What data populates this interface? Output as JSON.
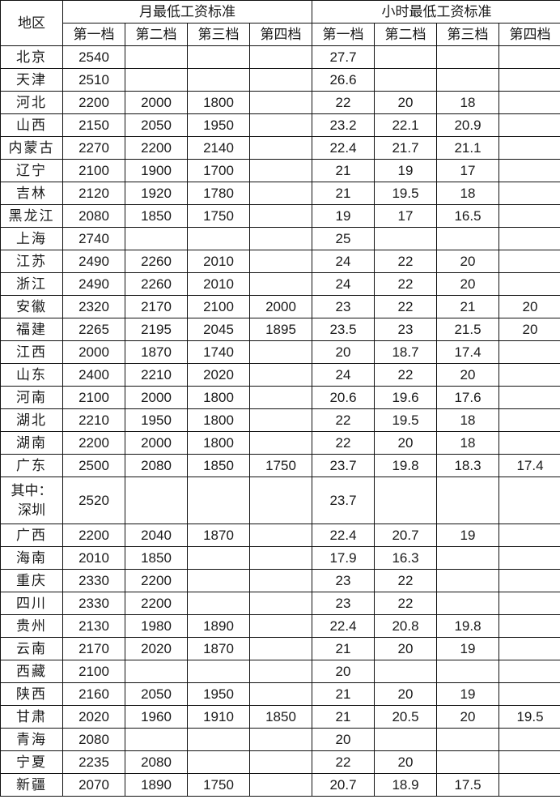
{
  "header": {
    "region": "地区",
    "monthly": "月最低工资标准",
    "hourly": "小时最低工资标准",
    "tiers": [
      "第一档",
      "第二档",
      "第三档",
      "第四档"
    ]
  },
  "rows": [
    {
      "region": "北京",
      "monthly": [
        "2540",
        "",
        "",
        ""
      ],
      "hourly": [
        "27.7",
        "",
        "",
        ""
      ]
    },
    {
      "region": "天津",
      "monthly": [
        "2510",
        "",
        "",
        ""
      ],
      "hourly": [
        "26.6",
        "",
        "",
        ""
      ]
    },
    {
      "region": "河北",
      "monthly": [
        "2200",
        "2000",
        "1800",
        ""
      ],
      "hourly": [
        "22",
        "20",
        "18",
        ""
      ]
    },
    {
      "region": "山西",
      "monthly": [
        "2150",
        "2050",
        "1950",
        ""
      ],
      "hourly": [
        "23.2",
        "22.1",
        "20.9",
        ""
      ]
    },
    {
      "region": "内蒙古",
      "monthly": [
        "2270",
        "2200",
        "2140",
        ""
      ],
      "hourly": [
        "22.4",
        "21.7",
        "21.1",
        ""
      ]
    },
    {
      "region": "辽宁",
      "monthly": [
        "2100",
        "1900",
        "1700",
        ""
      ],
      "hourly": [
        "21",
        "19",
        "17",
        ""
      ]
    },
    {
      "region": "吉林",
      "monthly": [
        "2120",
        "1920",
        "1780",
        ""
      ],
      "hourly": [
        "21",
        "19.5",
        "18",
        ""
      ]
    },
    {
      "region": "黑龙江",
      "monthly": [
        "2080",
        "1850",
        "1750",
        ""
      ],
      "hourly": [
        "19",
        "17",
        "16.5",
        ""
      ]
    },
    {
      "region": "上海",
      "monthly": [
        "2740",
        "",
        "",
        ""
      ],
      "hourly": [
        "25",
        "",
        "",
        ""
      ]
    },
    {
      "region": "江苏",
      "monthly": [
        "2490",
        "2260",
        "2010",
        ""
      ],
      "hourly": [
        "24",
        "22",
        "20",
        ""
      ]
    },
    {
      "region": "浙江",
      "monthly": [
        "2490",
        "2260",
        "2010",
        ""
      ],
      "hourly": [
        "24",
        "22",
        "20",
        ""
      ]
    },
    {
      "region": "安徽",
      "monthly": [
        "2320",
        "2170",
        "2100",
        "2000"
      ],
      "hourly": [
        "23",
        "22",
        "21",
        "20"
      ]
    },
    {
      "region": "福建",
      "monthly": [
        "2265",
        "2195",
        "2045",
        "1895"
      ],
      "hourly": [
        "23.5",
        "23",
        "21.5",
        "20"
      ]
    },
    {
      "region": "江西",
      "monthly": [
        "2000",
        "1870",
        "1740",
        ""
      ],
      "hourly": [
        "20",
        "18.7",
        "17.4",
        ""
      ]
    },
    {
      "region": "山东",
      "monthly": [
        "2400",
        "2210",
        "2020",
        ""
      ],
      "hourly": [
        "24",
        "22",
        "20",
        ""
      ]
    },
    {
      "region": "河南",
      "monthly": [
        "2100",
        "2000",
        "1800",
        ""
      ],
      "hourly": [
        "20.6",
        "19.6",
        "17.6",
        ""
      ]
    },
    {
      "region": "湖北",
      "monthly": [
        "2210",
        "1950",
        "1800",
        ""
      ],
      "hourly": [
        "22",
        "19.5",
        "18",
        ""
      ]
    },
    {
      "region": "湖南",
      "monthly": [
        "2200",
        "2000",
        "1800",
        ""
      ],
      "hourly": [
        "22",
        "20",
        "18",
        ""
      ]
    },
    {
      "region": "广东",
      "monthly": [
        "2500",
        "2080",
        "1850",
        "1750"
      ],
      "hourly": [
        "23.7",
        "19.8",
        "18.3",
        "17.4"
      ]
    },
    {
      "region": "其中：深圳",
      "monthly": [
        "2520",
        "",
        "",
        ""
      ],
      "hourly": [
        "23.7",
        "",
        "",
        ""
      ]
    },
    {
      "region": "广西",
      "monthly": [
        "2200",
        "2040",
        "1870",
        ""
      ],
      "hourly": [
        "22.4",
        "20.7",
        "19",
        ""
      ]
    },
    {
      "region": "海南",
      "monthly": [
        "2010",
        "1850",
        "",
        ""
      ],
      "hourly": [
        "17.9",
        "16.3",
        "",
        ""
      ]
    },
    {
      "region": "重庆",
      "monthly": [
        "2330",
        "2200",
        "",
        ""
      ],
      "hourly": [
        "23",
        "22",
        "",
        ""
      ]
    },
    {
      "region": "四川",
      "monthly": [
        "2330",
        "2200",
        "",
        ""
      ],
      "hourly": [
        "23",
        "22",
        "",
        ""
      ]
    },
    {
      "region": "贵州",
      "monthly": [
        "2130",
        "1980",
        "1890",
        ""
      ],
      "hourly": [
        "22.4",
        "20.8",
        "19.8",
        ""
      ]
    },
    {
      "region": "云南",
      "monthly": [
        "2170",
        "2020",
        "1870",
        ""
      ],
      "hourly": [
        "21",
        "20",
        "19",
        ""
      ]
    },
    {
      "region": "西藏",
      "monthly": [
        "2100",
        "",
        "",
        ""
      ],
      "hourly": [
        "20",
        "",
        "",
        ""
      ]
    },
    {
      "region": "陕西",
      "monthly": [
        "2160",
        "2050",
        "1950",
        ""
      ],
      "hourly": [
        "21",
        "20",
        "19",
        ""
      ]
    },
    {
      "region": "甘肃",
      "monthly": [
        "2020",
        "1960",
        "1910",
        "1850"
      ],
      "hourly": [
        "21",
        "20.5",
        "20",
        "19.5"
      ]
    },
    {
      "region": "青海",
      "monthly": [
        "2080",
        "",
        "",
        ""
      ],
      "hourly": [
        "20",
        "",
        "",
        ""
      ]
    },
    {
      "region": "宁夏",
      "monthly": [
        "2235",
        "2080",
        "",
        ""
      ],
      "hourly": [
        "22",
        "20",
        "",
        ""
      ]
    },
    {
      "region": "新疆",
      "monthly": [
        "2070",
        "1890",
        "1750",
        ""
      ],
      "hourly": [
        "20.7",
        "18.9",
        "17.5",
        ""
      ]
    }
  ]
}
